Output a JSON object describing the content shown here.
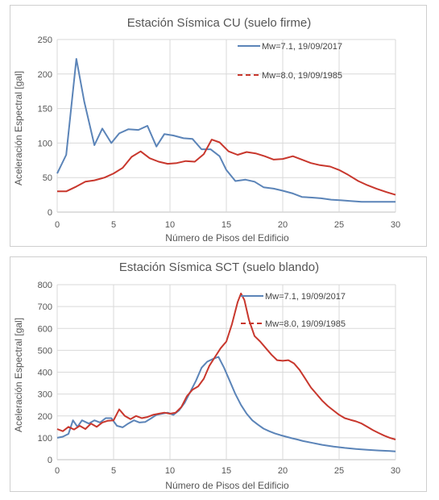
{
  "colors": {
    "series_2017": "#5b84b8",
    "series_1985": "#c8372d",
    "grid": "#d9d9d9",
    "text": "#555555"
  },
  "chart_data": [
    {
      "type": "line",
      "title": "Estación Sísmica CU (suelo firme)",
      "xlabel": "Número de Pisos del Edificio",
      "ylabel": "Aceleración Espectral [gal]",
      "xlim": [
        0,
        30
      ],
      "ylim": [
        0,
        250
      ],
      "xticks": [
        "0",
        "5",
        "10",
        "15",
        "20",
        "25",
        "30"
      ],
      "yticks": [
        "0",
        "50",
        "100",
        "150",
        "200",
        "250"
      ],
      "grid": true,
      "legend_position": "top-right",
      "series": [
        {
          "name": "Mw=7.1, 19/09/2017",
          "style": "solid",
          "x": [
            0,
            0.8,
            1.7,
            2.4,
            3.3,
            4.0,
            4.8,
            5.5,
            6.3,
            7.2,
            8.0,
            8.8,
            9.5,
            10.3,
            11.2,
            12.0,
            12.8,
            13.6,
            14.4,
            15.0,
            15.8,
            16.7,
            17.5,
            18.3,
            19.2,
            20.0,
            20.9,
            21.7,
            22.6,
            23.4,
            24.3,
            25.2,
            26.0,
            27.0,
            28.0,
            29.0,
            30.0
          ],
          "y": [
            56,
            83,
            222,
            160,
            97,
            121,
            100,
            114,
            120,
            119,
            125,
            95,
            113,
            111,
            107,
            106,
            91,
            91,
            81,
            61,
            45,
            47,
            44,
            36,
            34,
            31,
            27,
            22,
            21,
            20,
            18,
            17,
            16,
            15,
            15,
            15,
            15
          ]
        },
        {
          "name": "Mw=8.0, 19/09/1985",
          "style": "solid",
          "x": [
            0,
            0.8,
            1.7,
            2.5,
            3.3,
            4.2,
            5.0,
            5.8,
            6.6,
            7.4,
            8.2,
            9.0,
            9.8,
            10.6,
            11.4,
            12.2,
            13.0,
            13.7,
            14.4,
            15.2,
            16.0,
            16.8,
            17.6,
            18.4,
            19.2,
            20.0,
            20.9,
            21.7,
            22.5,
            23.3,
            24.2,
            25.0,
            25.8,
            26.7,
            27.5,
            28.3,
            29.2,
            30.0
          ],
          "y": [
            30,
            30,
            37,
            44,
            46,
            50,
            56,
            64,
            80,
            88,
            78,
            73,
            70,
            71,
            74,
            73,
            84,
            105,
            101,
            88,
            83,
            87,
            85,
            81,
            76,
            77,
            81,
            76,
            71,
            68,
            66,
            61,
            54,
            45,
            39,
            34,
            29,
            25
          ]
        }
      ]
    },
    {
      "type": "line",
      "title": "Estación Sísmica SCT (suelo blando)",
      "xlabel": "Número de Pisos del Edificio",
      "ylabel": "Aceleración Espectral [gal]",
      "xlim": [
        0,
        30
      ],
      "ylim": [
        0,
        800
      ],
      "xticks": [
        "0",
        "5",
        "10",
        "15",
        "20",
        "25",
        "30"
      ],
      "yticks": [
        "0",
        "100",
        "200",
        "300",
        "400",
        "500",
        "600",
        "700",
        "800"
      ],
      "grid": true,
      "legend_position": "top-right",
      "series": [
        {
          "name": "Mw=7.1, 19/09/2017",
          "style": "solid",
          "x": [
            0,
            0.5,
            1.0,
            1.4,
            1.8,
            2.2,
            2.8,
            3.3,
            3.8,
            4.3,
            4.8,
            5.3,
            5.8,
            6.3,
            6.8,
            7.3,
            7.8,
            8.3,
            8.8,
            9.3,
            9.8,
            10.3,
            10.8,
            11.3,
            11.8,
            12.3,
            12.8,
            13.3,
            13.8,
            14.3,
            14.8,
            15.3,
            15.8,
            16.3,
            16.8,
            17.3,
            17.8,
            18.3,
            18.8,
            19.3,
            19.8,
            20.3,
            20.8,
            21.3,
            21.8,
            22.5,
            23.5,
            24.5,
            25.5,
            26.5,
            27.5,
            28.5,
            29.5,
            30.0
          ],
          "y": [
            100,
            105,
            118,
            180,
            150,
            180,
            165,
            180,
            170,
            190,
            190,
            155,
            148,
            165,
            180,
            170,
            172,
            188,
            205,
            210,
            215,
            205,
            225,
            260,
            310,
            360,
            420,
            448,
            460,
            470,
            420,
            360,
            300,
            250,
            210,
            180,
            160,
            142,
            130,
            120,
            112,
            105,
            98,
            92,
            85,
            78,
            68,
            60,
            54,
            49,
            45,
            42,
            40,
            38
          ]
        },
        {
          "name": "Mw=8.0, 19/09/1985",
          "style": "solid",
          "x": [
            0,
            0.5,
            1.0,
            1.5,
            2.0,
            2.5,
            3.0,
            3.5,
            4.0,
            4.5,
            5.0,
            5.5,
            6.0,
            6.5,
            7.0,
            7.5,
            8.0,
            8.5,
            9.0,
            9.5,
            10.0,
            10.5,
            11.0,
            11.5,
            12.0,
            12.5,
            13.0,
            13.5,
            14.0,
            14.5,
            15.0,
            15.5,
            16.0,
            16.3,
            16.6,
            17.0,
            17.5,
            18.0,
            18.5,
            19.0,
            19.5,
            20.0,
            20.5,
            21.0,
            21.5,
            22.0,
            22.5,
            23.0,
            23.5,
            24.0,
            24.5,
            25.0,
            25.5,
            26.0,
            26.5,
            27.0,
            27.5,
            28.0,
            28.5,
            29.0,
            29.5,
            30.0
          ],
          "y": [
            140,
            130,
            150,
            138,
            155,
            140,
            165,
            150,
            170,
            178,
            180,
            230,
            200,
            185,
            200,
            190,
            195,
            205,
            210,
            215,
            210,
            215,
            240,
            290,
            320,
            335,
            370,
            430,
            470,
            510,
            540,
            620,
            720,
            760,
            730,
            640,
            565,
            540,
            510,
            480,
            455,
            452,
            455,
            440,
            410,
            370,
            330,
            300,
            270,
            245,
            225,
            205,
            190,
            182,
            175,
            165,
            150,
            135,
            122,
            110,
            100,
            92
          ]
        }
      ]
    }
  ]
}
